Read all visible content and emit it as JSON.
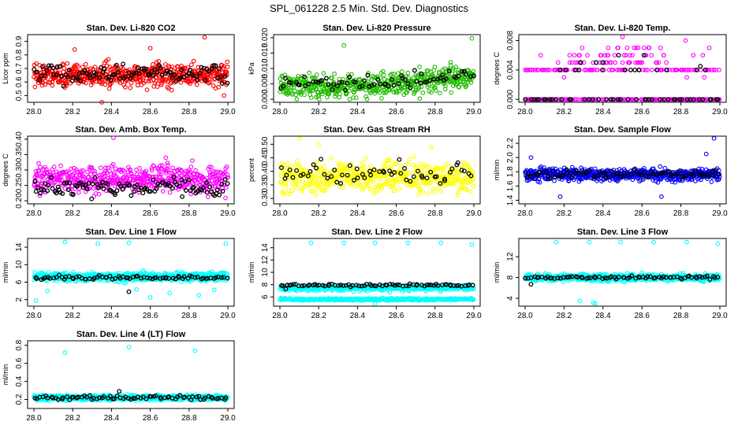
{
  "figure_title": "SPL_061228  2.5 Min. Std. Dev. Diagnostics",
  "colors": {
    "overlay": "#000000",
    "red": "#ff0000",
    "green": "#22bb00",
    "magenta": "#ff00ff",
    "yellow": "#ffff00",
    "blue": "#0000ff",
    "cyan": "#00ffff"
  },
  "chart_data": [
    {
      "type": "scatter",
      "title": "Stan. Dev. Li-820 CO2",
      "ylabel": "Licor ppm",
      "xlim": [
        28.0,
        29.0
      ],
      "ylim": [
        0.45,
        0.95
      ],
      "x_ticks": [
        "28.0",
        "28.2",
        "28.4",
        "28.6",
        "28.8",
        "29.0"
      ],
      "x_tick_values": [
        28.0,
        28.2,
        28.4,
        28.6,
        28.8,
        29.0
      ],
      "y_ticks": [
        "0.5",
        "0.6",
        "0.7",
        "0.8",
        "0.9"
      ],
      "y_tick_values": [
        0.5,
        0.6,
        0.7,
        0.8,
        0.9
      ],
      "series": [
        {
          "name": "main",
          "color": "red",
          "n": 560,
          "center": 0.65,
          "spread": 0.06,
          "min": 0.48,
          "max": 0.82,
          "outliers": [
            [
              28.35,
              0.45
            ],
            [
              28.88,
              0.93
            ],
            [
              28.98,
              0.5
            ],
            [
              28.6,
              0.85
            ],
            [
              28.21,
              0.84
            ]
          ]
        },
        {
          "name": "overlay",
          "color": "black",
          "n": 100,
          "center": 0.66,
          "spread": 0.05,
          "min": 0.55,
          "max": 0.82,
          "outliers": []
        }
      ]
    },
    {
      "type": "scatter",
      "title": "Stan. Dev. Li-820 Pressure",
      "ylabel": "kPa",
      "xlim": [
        28.0,
        29.0
      ],
      "ylim": [
        -0.001,
        0.021
      ],
      "x_ticks": [
        "28.0",
        "28.2",
        "28.4",
        "28.6",
        "28.8",
        "29.0"
      ],
      "x_tick_values": [
        28.0,
        28.2,
        28.4,
        28.6,
        28.8,
        29.0
      ],
      "y_ticks": [
        "0.000",
        "0.005",
        "0.010",
        "0.015",
        "0.020"
      ],
      "y_tick_values": [
        0.0,
        0.005,
        0.01,
        0.015,
        0.02
      ],
      "series": [
        {
          "name": "main",
          "color": "green",
          "n": 520,
          "center": 0.004,
          "spread": 0.0025,
          "min": 0.0,
          "max": 0.009,
          "trend": 0.004,
          "outliers": [
            [
              28.33,
              0.0175
            ],
            [
              28.99,
              0.0198
            ],
            [
              28.88,
              0.012
            ],
            [
              28.72,
              0.0105
            ]
          ]
        },
        {
          "name": "overlay",
          "color": "black",
          "n": 70,
          "center": 0.0052,
          "spread": 0.0015,
          "min": 0.0015,
          "max": 0.0095,
          "trend": 0.003,
          "outliers": []
        }
      ]
    },
    {
      "type": "scatter",
      "title": "Stan. Dev. Li-820 Temp.",
      "ylabel": "degrees C",
      "xlim": [
        28.0,
        29.0
      ],
      "ylim": [
        -0.0004,
        0.0088
      ],
      "x_ticks": [
        "28.0",
        "28.2",
        "28.4",
        "28.6",
        "28.8",
        "29.0"
      ],
      "x_tick_values": [
        28.0,
        28.2,
        28.4,
        28.6,
        28.8,
        29.0
      ],
      "y_ticks": [
        "0.000",
        "0.004",
        "0.008"
      ],
      "y_tick_values": [
        0.0,
        0.004,
        0.008
      ],
      "series": [
        {
          "name": "main",
          "color": "magenta",
          "n": 340,
          "levels": [
            0.0,
            0.004,
            0.005,
            0.006,
            0.007,
            0.008
          ],
          "outliers": [
            [
              28.5,
              0.0085
            ],
            [
              28.2,
              0.003
            ],
            [
              28.83,
              0.003
            ],
            [
              28.92,
              0.003
            ]
          ]
        },
        {
          "name": "overlay",
          "color": "black",
          "n": 60,
          "levels": [
            0.0,
            0.004,
            0.005
          ],
          "outliers": [
            [
              28.61,
              0.006
            ],
            [
              28.48,
              0.006
            ],
            [
              28.9,
              0.0045
            ]
          ]
        }
      ]
    },
    {
      "type": "scatter",
      "title": "Stan. Dev. Amb. Box Temp.",
      "ylabel": "degrees C",
      "xlim": [
        28.0,
        29.0
      ],
      "ylim": [
        0.19,
        0.41
      ],
      "x_ticks": [
        "28.0",
        "28.2",
        "28.4",
        "28.6",
        "28.8",
        "29.0"
      ],
      "x_tick_values": [
        28.0,
        28.2,
        28.4,
        28.6,
        28.8,
        29.0
      ],
      "y_ticks": [
        "0.20",
        "0.25",
        "0.30",
        "0.35",
        "0.40"
      ],
      "y_tick_values": [
        0.2,
        0.25,
        0.3,
        0.35,
        0.4
      ],
      "series": [
        {
          "name": "main",
          "color": "magenta",
          "n": 520,
          "center": 0.27,
          "spread": 0.03,
          "min": 0.2,
          "max": 0.35,
          "outliers": [
            [
              28.41,
              0.405
            ],
            [
              28.68,
              0.34
            ]
          ]
        },
        {
          "name": "overlay",
          "color": "black",
          "n": 110,
          "center": 0.245,
          "spread": 0.02,
          "min": 0.205,
          "max": 0.3,
          "outliers": []
        }
      ]
    },
    {
      "type": "scatter",
      "title": "Stan. Dev. Gas Stream RH",
      "ylabel": "percent",
      "xlim": [
        28.0,
        29.0
      ],
      "ylim": [
        0.28,
        0.53
      ],
      "x_ticks": [
        "28.0",
        "28.2",
        "28.4",
        "28.6",
        "28.8",
        "29.0"
      ],
      "x_tick_values": [
        28.0,
        28.2,
        28.4,
        28.6,
        28.8,
        29.0
      ],
      "y_ticks": [
        "0.30",
        "0.35",
        "0.40",
        "0.45",
        "0.50"
      ],
      "y_tick_values": [
        0.3,
        0.35,
        0.4,
        0.45,
        0.5
      ],
      "series": [
        {
          "name": "main",
          "color": "yellow",
          "n": 520,
          "center": 0.38,
          "spread": 0.04,
          "min": 0.3,
          "max": 0.47,
          "outliers": [
            [
              28.1,
              0.52
            ],
            [
              28.2,
              0.5
            ],
            [
              28.78,
              0.49
            ]
          ]
        },
        {
          "name": "overlay",
          "color": "black",
          "n": 60,
          "center": 0.39,
          "spread": 0.035,
          "min": 0.32,
          "max": 0.46,
          "outliers": []
        }
      ]
    },
    {
      "type": "scatter",
      "title": "Stan. Dev. Sample Flow",
      "ylabel": "ml/min",
      "xlim": [
        28.0,
        29.0
      ],
      "ylim": [
        1.35,
        2.3
      ],
      "x_ticks": [
        "28.0",
        "28.2",
        "28.4",
        "28.6",
        "28.8",
        "29.0"
      ],
      "x_tick_values": [
        28.0,
        28.2,
        28.4,
        28.6,
        28.8,
        29.0
      ],
      "y_ticks": [
        "1.4",
        "1.6",
        "1.8",
        "2.0",
        "2.2"
      ],
      "y_tick_values": [
        1.4,
        1.6,
        1.8,
        2.0,
        2.2
      ],
      "series": [
        {
          "name": "main",
          "color": "blue",
          "n": 620,
          "center": 1.76,
          "spread": 0.06,
          "min": 1.55,
          "max": 2.05,
          "outliers": [
            [
              28.97,
              2.27
            ],
            [
              28.03,
              2.0
            ],
            [
              28.93,
              2.05
            ],
            [
              28.18,
              1.45
            ],
            [
              28.7,
              1.45
            ]
          ]
        },
        {
          "name": "overlay",
          "color": "black",
          "n": 80,
          "center": 1.77,
          "spread": 0.04,
          "min": 1.68,
          "max": 1.95,
          "outliers": []
        }
      ]
    },
    {
      "type": "scatter",
      "title": "Stan. Dev. Line 1 Flow",
      "ylabel": "ml/min",
      "xlim": [
        28.0,
        29.0
      ],
      "ylim": [
        0.5,
        16.0
      ],
      "x_ticks": [
        "28.0",
        "28.2",
        "28.4",
        "28.6",
        "28.8",
        "29.0"
      ],
      "x_tick_values": [
        28.0,
        28.2,
        28.4,
        28.6,
        28.8,
        29.0
      ],
      "y_ticks": [
        "2",
        "6",
        "10",
        "14"
      ],
      "y_tick_values": [
        2,
        6,
        10,
        14
      ],
      "series": [
        {
          "name": "main",
          "color": "cyan",
          "n": 640,
          "center": 7.2,
          "spread": 0.7,
          "min": 5.8,
          "max": 8.8,
          "outliers": [
            [
              28.16,
              15.2
            ],
            [
              28.33,
              14.8
            ],
            [
              28.49,
              15.0
            ],
            [
              28.99,
              14.8
            ],
            [
              28.01,
              1.8
            ],
            [
              28.07,
              4.0
            ],
            [
              28.6,
              2.5
            ],
            [
              28.7,
              3.5
            ],
            [
              28.85,
              3.0
            ],
            [
              28.53,
              4.3
            ],
            [
              28.93,
              4.2
            ]
          ]
        },
        {
          "name": "overlay",
          "color": "black",
          "n": 75,
          "center": 7.0,
          "spread": 0.3,
          "min": 6.3,
          "max": 7.8,
          "outliers": [
            [
              28.49,
              3.8
            ]
          ]
        }
      ]
    },
    {
      "type": "scatter",
      "title": "Stan. Dev. Line 2 Flow",
      "ylabel": "ml/min",
      "xlim": [
        28.0,
        29.0
      ],
      "ylim": [
        4.5,
        15.5
      ],
      "x_ticks": [
        "28.0",
        "28.2",
        "28.4",
        "28.6",
        "28.8",
        "29.0"
      ],
      "x_tick_values": [
        28.0,
        28.2,
        28.4,
        28.6,
        28.8,
        29.0
      ],
      "y_ticks": [
        "6",
        "8",
        "10",
        "12",
        "14"
      ],
      "y_tick_values": [
        6,
        8,
        10,
        12,
        14
      ],
      "series": [
        {
          "name": "band-upper",
          "color": "cyan",
          "n": 420,
          "center": 7.5,
          "spread": 0.35,
          "min": 6.7,
          "max": 8.3,
          "outliers": [
            [
              28.16,
              14.8
            ],
            [
              28.33,
              14.8
            ],
            [
              28.49,
              14.8
            ],
            [
              28.66,
              14.8
            ],
            [
              28.83,
              14.8
            ],
            [
              28.99,
              14.5
            ]
          ]
        },
        {
          "name": "band-lower",
          "color": "cyan",
          "n": 420,
          "center": 5.6,
          "spread": 0.12,
          "min": 5.3,
          "max": 5.9,
          "outliers": [
            [
              28.49,
              4.9
            ]
          ]
        },
        {
          "name": "overlay",
          "color": "black",
          "n": 75,
          "center": 7.9,
          "spread": 0.15,
          "min": 7.5,
          "max": 8.3,
          "outliers": [
            [
              28.03,
              7.3
            ]
          ]
        }
      ]
    },
    {
      "type": "scatter",
      "title": "Stan. Dev. Line 3 Flow",
      "ylabel": "ml/min",
      "xlim": [
        28.0,
        29.0
      ],
      "ylim": [
        2.5,
        15.5
      ],
      "x_ticks": [
        "28.0",
        "28.2",
        "28.4",
        "28.6",
        "28.8",
        "29.0"
      ],
      "x_tick_values": [
        28.0,
        28.2,
        28.4,
        28.6,
        28.8,
        29.0
      ],
      "y_ticks": [
        "4",
        "8",
        "12"
      ],
      "y_tick_values": [
        4,
        8,
        12
      ],
      "series": [
        {
          "name": "main",
          "color": "cyan",
          "n": 640,
          "center": 8.0,
          "spread": 0.45,
          "min": 6.8,
          "max": 9.2,
          "outliers": [
            [
              28.16,
              14.8
            ],
            [
              28.33,
              14.8
            ],
            [
              28.49,
              14.8
            ],
            [
              28.66,
              14.8
            ],
            [
              28.83,
              14.8
            ],
            [
              28.99,
              14.5
            ],
            [
              28.28,
              3.5
            ],
            [
              28.35,
              3.2
            ],
            [
              28.36,
              3.0
            ]
          ]
        },
        {
          "name": "overlay",
          "color": "black",
          "n": 75,
          "center": 8.0,
          "spread": 0.2,
          "min": 7.3,
          "max": 8.5,
          "outliers": [
            [
              28.03,
              6.7
            ]
          ]
        }
      ]
    },
    {
      "type": "scatter",
      "title": "Stan. Dev. Line 4 (LT) Flow",
      "ylabel": "ml/min",
      "xlim": [
        28.0,
        29.0
      ],
      "ylim": [
        0.1,
        0.85
      ],
      "x_ticks": [
        "28.0",
        "28.2",
        "28.4",
        "28.6",
        "28.8",
        "29.0"
      ],
      "x_tick_values": [
        28.0,
        28.2,
        28.4,
        28.6,
        28.8,
        29.0
      ],
      "y_ticks": [
        "0.2",
        "0.4",
        "0.6",
        "0.8"
      ],
      "y_tick_values": [
        0.2,
        0.4,
        0.6,
        0.8
      ],
      "series": [
        {
          "name": "main",
          "color": "cyan",
          "n": 640,
          "center": 0.22,
          "spread": 0.02,
          "min": 0.17,
          "max": 0.27,
          "outliers": [
            [
              28.16,
              0.72
            ],
            [
              28.49,
              0.78
            ],
            [
              28.83,
              0.74
            ]
          ]
        },
        {
          "name": "overlay",
          "color": "black",
          "n": 75,
          "center": 0.22,
          "spread": 0.02,
          "min": 0.17,
          "max": 0.29,
          "outliers": [
            [
              28.44,
              0.29
            ]
          ]
        }
      ]
    }
  ]
}
